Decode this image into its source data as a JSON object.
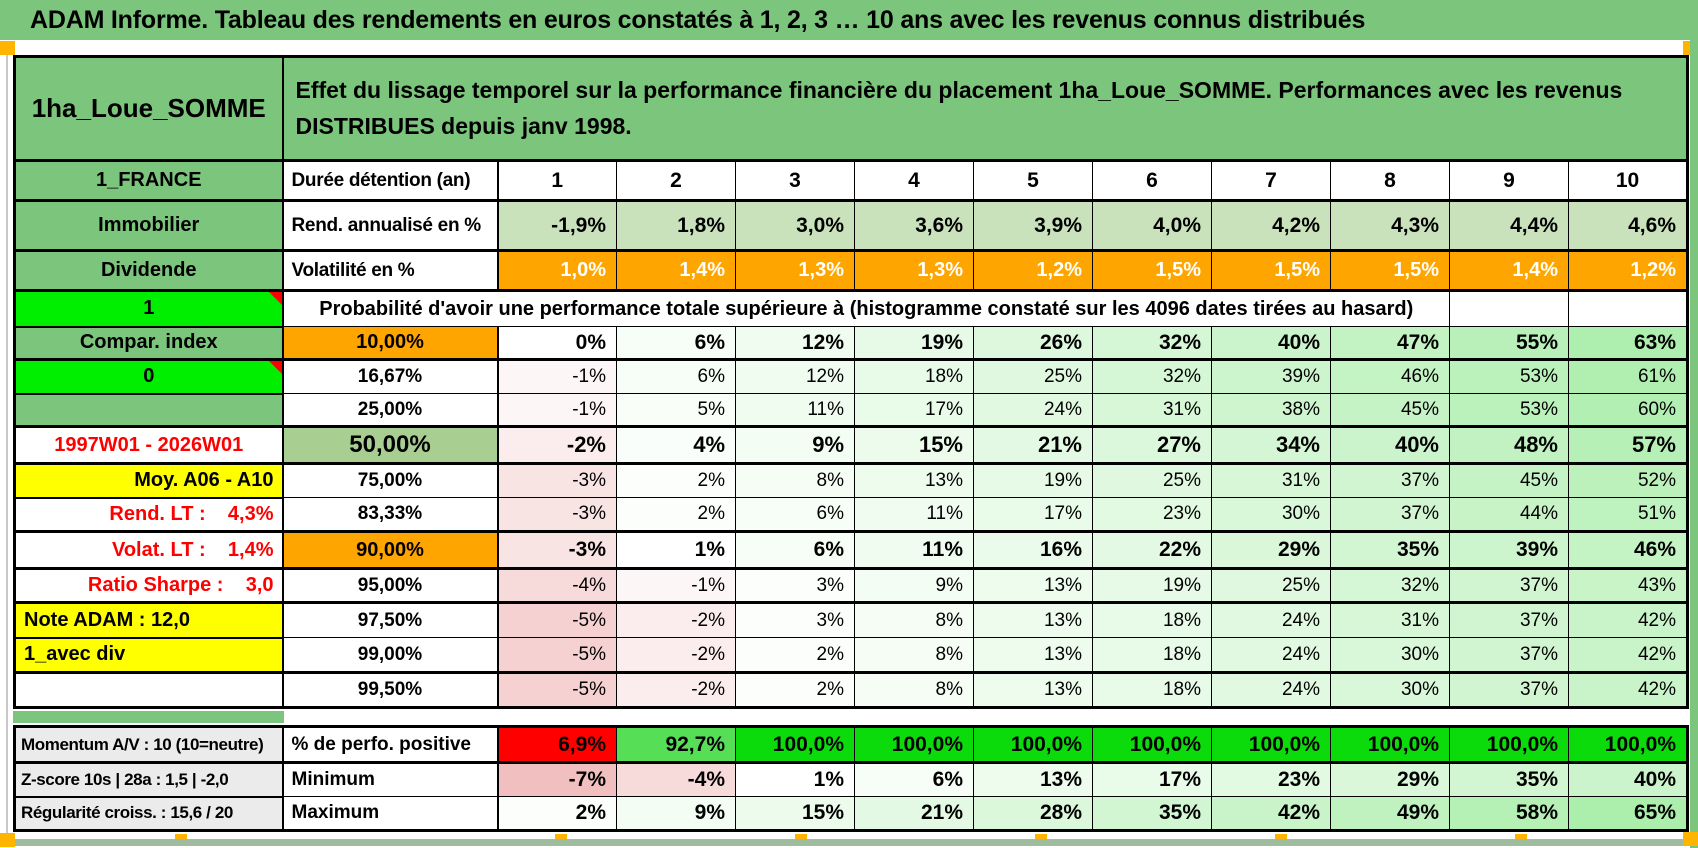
{
  "title": "ADAM Informe. Tableau des rendements en euros constatés à 1, 2, 3 … 10 ans avec les revenus connus distribués",
  "placement": {
    "name": "1ha_Loue_SOMME",
    "description": "Effet du lissage temporel sur la performance financière du placement 1ha_Loue_SOMME. Performances avec les revenus DISTRIBUES depuis janv 1998."
  },
  "left_panel": {
    "rows": [
      {
        "label": "1_FRANCE",
        "bg": "green"
      },
      {
        "label": "Immobilier",
        "bg": "green"
      },
      {
        "label": "Dividende",
        "bg": "green"
      },
      {
        "label": "1",
        "bg": "bright",
        "corner": true
      },
      {
        "label": "Compar. index",
        "bg": "green"
      },
      {
        "label": "0",
        "bg": "bright",
        "corner": true
      },
      {
        "label": "",
        "bg": "green"
      },
      {
        "label": "1997W01 - 2026W01",
        "bg": "white",
        "color": "red",
        "align": "center"
      },
      {
        "label": "Moy. A06 - A10",
        "bg": "yellow",
        "align": "right"
      },
      {
        "label": "Rend. LT :    4,3%",
        "bg": "white",
        "color": "red",
        "align": "right"
      },
      {
        "label": "Volat. LT :    1,4%",
        "bg": "white",
        "color": "red",
        "align": "right"
      },
      {
        "label": "Ratio Sharpe :    3,0",
        "bg": "white",
        "color": "red",
        "align": "right"
      },
      {
        "label": "Note ADAM : 12,0",
        "bg": "yellow",
        "align": "left"
      },
      {
        "label": "1_avec div",
        "bg": "yellow",
        "align": "left"
      },
      {
        "label": "",
        "bg": "white"
      }
    ],
    "bottom_rows": [
      "Momentum A/V : 10 (10=neutre)",
      "Z-score 10s | 28a : 1,5 | -2,0",
      "Régularité croiss. : 15,6 / 20"
    ]
  },
  "table": {
    "duration_label": "Durée détention (an)",
    "durations": [
      "1",
      "2",
      "3",
      "4",
      "5",
      "6",
      "7",
      "8",
      "9",
      "10"
    ],
    "rend_label": "Rend. annualisé en %",
    "rend_values": [
      "-1,9%",
      "1,8%",
      "3,0%",
      "3,6%",
      "3,9%",
      "4,0%",
      "4,2%",
      "4,3%",
      "4,4%",
      "4,6%"
    ],
    "volat_label": "Volatilité en %",
    "volat_values": [
      "1,0%",
      "1,4%",
      "1,3%",
      "1,3%",
      "1,2%",
      "1,5%",
      "1,5%",
      "1,5%",
      "1,4%",
      "1,2%"
    ],
    "probability_title": "Probabilité d'avoir une performance totale supérieure à (histogramme constaté sur les 4096 dates tirées au hasard)",
    "probability_rows": [
      {
        "threshold": "10,00%",
        "style": "orange",
        "values": [
          0,
          6,
          12,
          19,
          26,
          32,
          40,
          47,
          55,
          63
        ]
      },
      {
        "threshold": "16,67%",
        "style": "plain",
        "values": [
          -1,
          6,
          12,
          18,
          25,
          32,
          39,
          46,
          53,
          61
        ]
      },
      {
        "threshold": "25,00%",
        "style": "plain",
        "values": [
          -1,
          5,
          11,
          17,
          24,
          31,
          38,
          45,
          53,
          60
        ]
      },
      {
        "threshold": "50,00%",
        "style": "fifty",
        "values": [
          -2,
          4,
          9,
          15,
          21,
          27,
          34,
          40,
          48,
          57
        ]
      },
      {
        "threshold": "75,00%",
        "style": "plain",
        "values": [
          -3,
          2,
          8,
          13,
          19,
          25,
          31,
          37,
          45,
          52
        ]
      },
      {
        "threshold": "83,33%",
        "style": "plain",
        "values": [
          -3,
          2,
          6,
          11,
          17,
          23,
          30,
          37,
          44,
          51
        ]
      },
      {
        "threshold": "90,00%",
        "style": "orange",
        "values": [
          -3,
          1,
          6,
          11,
          16,
          22,
          29,
          35,
          39,
          46
        ]
      },
      {
        "threshold": "95,00%",
        "style": "plain",
        "values": [
          -4,
          -1,
          3,
          9,
          13,
          19,
          25,
          32,
          37,
          43
        ]
      },
      {
        "threshold": "97,50%",
        "style": "plain",
        "values": [
          -5,
          -2,
          3,
          8,
          13,
          18,
          24,
          31,
          37,
          42
        ]
      },
      {
        "threshold": "99,00%",
        "style": "plain",
        "values": [
          -5,
          -2,
          2,
          8,
          13,
          18,
          24,
          30,
          37,
          42
        ]
      },
      {
        "threshold": "99,50%",
        "style": "plain",
        "values": [
          -5,
          -2,
          2,
          8,
          13,
          18,
          24,
          30,
          37,
          42
        ]
      }
    ],
    "summary_rows": [
      {
        "label": "% de perfo. positive",
        "values": [
          "6,9%",
          "92,7%",
          "100,0%",
          "100,0%",
          "100,0%",
          "100,0%",
          "100,0%",
          "100,0%",
          "100,0%",
          "100,0%"
        ]
      },
      {
        "label": "Minimum",
        "values": [
          -7,
          -4,
          1,
          6,
          13,
          17,
          23,
          29,
          35,
          40
        ]
      },
      {
        "label": "Maximum",
        "values": [
          2,
          9,
          15,
          21,
          28,
          35,
          42,
          49,
          58,
          65
        ]
      }
    ]
  },
  "colors": {
    "banner_green": "#7CC57C",
    "bright_green": "#00EE00",
    "orange": "#FFA500",
    "yellow": "#FFFF00",
    "label_gray": "#EBEBEB",
    "fifty_green": "#A9CE91",
    "rend_green": "#C9E2BC",
    "red_text": "#FF0000",
    "perfo_red": "#FF0000",
    "perfo_mid_green": "#57DE57",
    "perfo_full_green": "#0BDB0B",
    "corner_orange": "#FFB400"
  }
}
